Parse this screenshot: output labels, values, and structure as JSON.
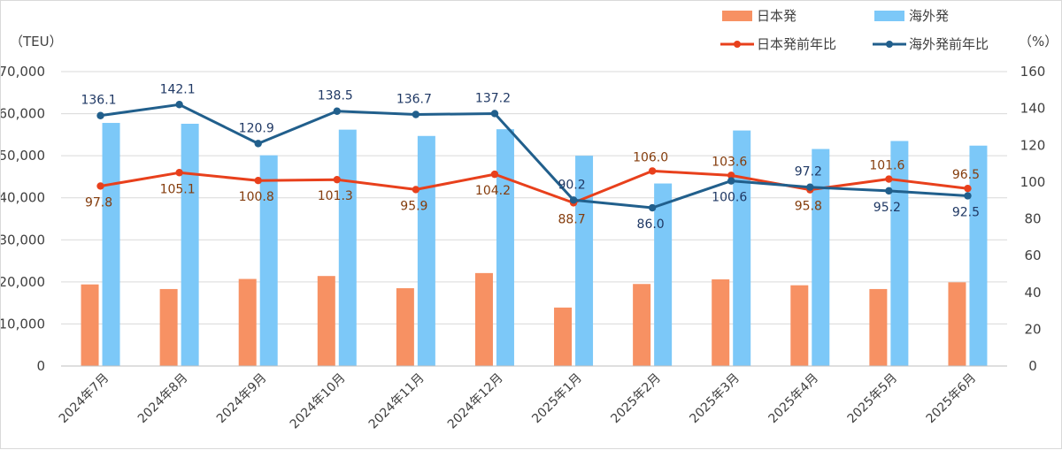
{
  "chart_data": {
    "type": "bar+line",
    "left_unit": "（TEU）",
    "right_unit": "（%）",
    "categories": [
      "2024年7月",
      "2024年8月",
      "2024年9月",
      "2024年10月",
      "2024年11月",
      "2024年12月",
      "2025年1月",
      "2025年2月",
      "2025年3月",
      "2025年4月",
      "2025年5月",
      "2025年6月"
    ],
    "y_left": {
      "min": 0,
      "max": 70000,
      "step": 10000,
      "tick_labels": [
        "0",
        "10,000",
        "20,000",
        "30,000",
        "40,000",
        "50,000",
        "60,000",
        "70,000"
      ]
    },
    "y_right": {
      "min": 0,
      "max": 160,
      "step": 20,
      "tick_labels": [
        "0",
        "20",
        "40",
        "60",
        "80",
        "100",
        "120",
        "140",
        "160"
      ]
    },
    "series": [
      {
        "name": "日本発",
        "kind": "bar",
        "axis": "left",
        "color": "#f79163",
        "values": [
          19400,
          18300,
          20700,
          21400,
          18500,
          22100,
          13900,
          19500,
          20600,
          19200,
          18300,
          19900
        ]
      },
      {
        "name": "海外発",
        "kind": "bar",
        "axis": "left",
        "color": "#7cc8f8",
        "values": [
          57800,
          57600,
          50100,
          56200,
          54700,
          56300,
          50000,
          43400,
          56000,
          51600,
          53500,
          52400
        ]
      },
      {
        "name": "日本発前年比",
        "kind": "line",
        "axis": "right",
        "color": "#e8401c",
        "values": [
          97.8,
          105.1,
          100.8,
          101.3,
          95.9,
          104.2,
          88.7,
          106.0,
          103.6,
          95.8,
          101.6,
          96.5
        ],
        "labels": [
          "97.8",
          "105.1",
          "100.8",
          "101.3",
          "95.9",
          "104.2",
          "88.7",
          "106.0",
          "103.6",
          "95.8",
          "101.6",
          "96.5"
        ]
      },
      {
        "name": "海外発前年比",
        "kind": "line",
        "axis": "right",
        "color": "#215f8c",
        "values": [
          136.1,
          142.1,
          120.9,
          138.5,
          136.7,
          137.2,
          90.2,
          86.0,
          100.6,
          97.2,
          95.2,
          92.5
        ],
        "labels": [
          "136.1",
          "142.1",
          "120.9",
          "138.5",
          "136.7",
          "137.2",
          "90.2",
          "86.0",
          "100.6",
          "97.2",
          "95.2",
          "92.5"
        ]
      }
    ],
    "legend_position": "top-right",
    "grid": "horizontal"
  }
}
